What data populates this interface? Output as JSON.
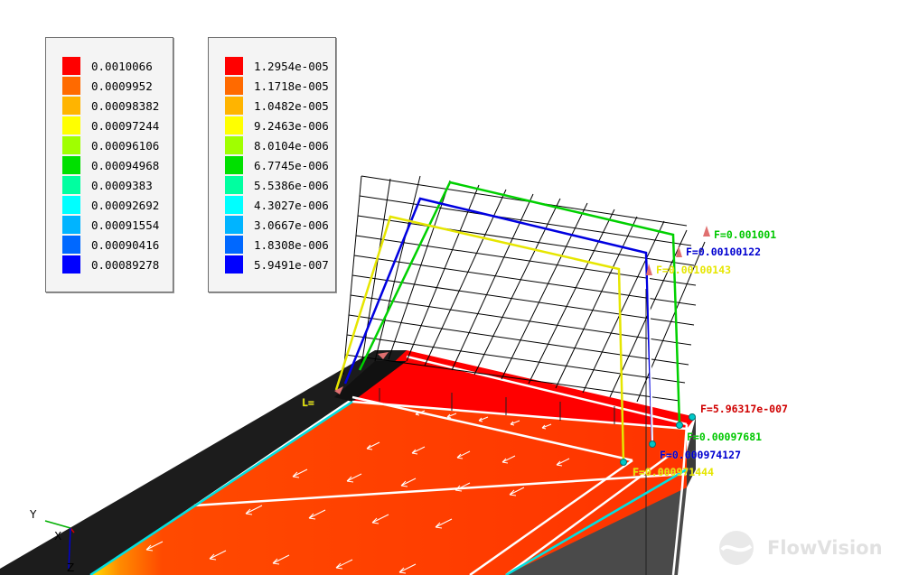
{
  "legends": [
    {
      "entries": [
        {
          "color": "#ff0000",
          "label": "0.0010066"
        },
        {
          "color": "#ff6a00",
          "label": "0.0009952"
        },
        {
          "color": "#ffb400",
          "label": "0.00098382"
        },
        {
          "color": "#ffff00",
          "label": "0.00097244"
        },
        {
          "color": "#a0ff00",
          "label": "0.00096106"
        },
        {
          "color": "#00e000",
          "label": "0.00094968"
        },
        {
          "color": "#00ffa0",
          "label": "0.0009383"
        },
        {
          "color": "#00ffff",
          "label": "0.00092692"
        },
        {
          "color": "#00b4ff",
          "label": "0.00091554"
        },
        {
          "color": "#0068ff",
          "label": "0.00090416"
        },
        {
          "color": "#0000ff",
          "label": "0.00089278"
        }
      ]
    },
    {
      "entries": [
        {
          "color": "#ff0000",
          "label": "1.2954e-005"
        },
        {
          "color": "#ff6a00",
          "label": "1.1718e-005"
        },
        {
          "color": "#ffb400",
          "label": "1.0482e-005"
        },
        {
          "color": "#ffff00",
          "label": "9.2463e-006"
        },
        {
          "color": "#a0ff00",
          "label": "8.0104e-006"
        },
        {
          "color": "#00e000",
          "label": "6.7745e-006"
        },
        {
          "color": "#00ffa0",
          "label": "5.5386e-006"
        },
        {
          "color": "#00ffff",
          "label": "4.3027e-006"
        },
        {
          "color": "#00b4ff",
          "label": "3.0667e-006"
        },
        {
          "color": "#0068ff",
          "label": "1.8308e-006"
        },
        {
          "color": "#0000ff",
          "label": "5.9491e-007"
        }
      ]
    }
  ],
  "force_labels": {
    "green_top": {
      "text": "F=0.001001",
      "color": "#00c800"
    },
    "blue_top": {
      "text": "F=0.00100122",
      "color": "#0000d0"
    },
    "yellow_top": {
      "text": "F=0.00100143",
      "color": "#e6e600"
    },
    "red_bottom": {
      "text": "F=5.96317e-007",
      "color": "#d00000"
    },
    "green_bottom": {
      "text": "F=0.00097681",
      "color": "#00c800"
    },
    "blue_bottom": {
      "text": "F=0.000974127",
      "color": "#0000d0"
    },
    "yellow_bottom": {
      "text": "F=0.000971444",
      "color": "#e6e600"
    },
    "left_small": {
      "text": "L=",
      "color": "#e6e600"
    }
  },
  "axes": {
    "y": "Y",
    "x": "X",
    "z": "Z"
  },
  "watermark": "FlowVision",
  "colors": {
    "surface_red": "#ff2a00",
    "surface_orange": "#ff5a10",
    "side_black": "#1c1c1c",
    "side_gray": "#4a4a4a",
    "grid_line": "#000000",
    "edge_white": "#ffffff",
    "cyan_edge": "#00e0e0"
  }
}
